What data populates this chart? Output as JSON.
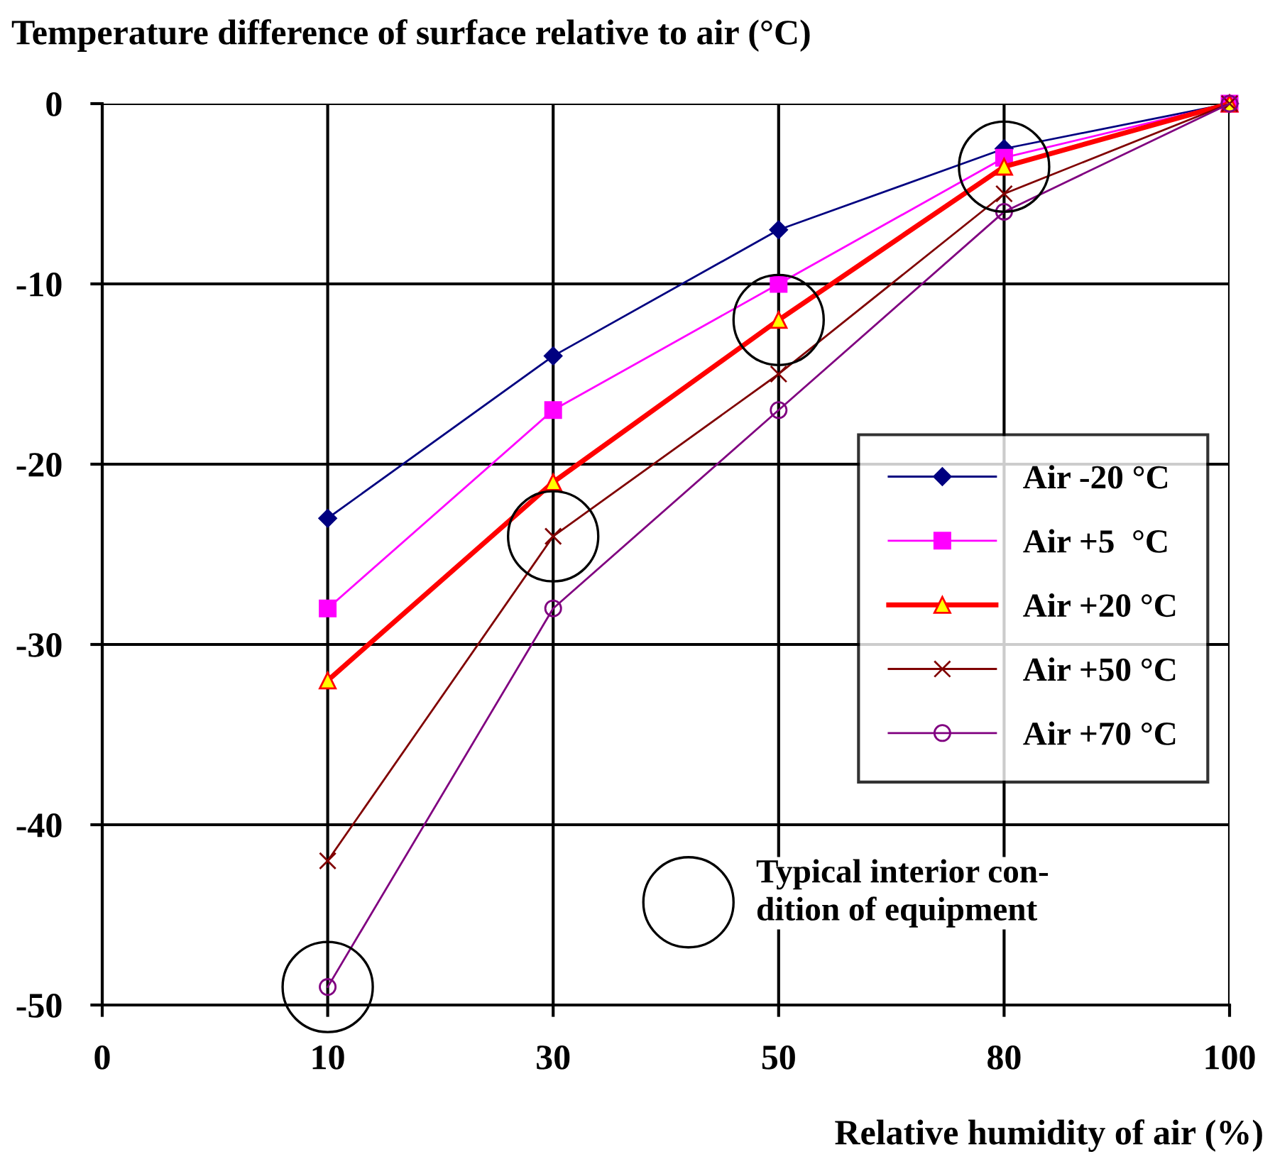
{
  "chart_data": {
    "type": "line",
    "ylabel": "Temperature difference of surface relative to air (°C)",
    "xlabel": "Relative humidity of air (%)",
    "categories": [
      "0",
      "10",
      "30",
      "50",
      "80",
      "100"
    ],
    "ylim": [
      -50,
      0
    ],
    "yticks": [
      -50,
      -40,
      -30,
      -20,
      -10,
      0
    ],
    "grid": true,
    "legend": "right",
    "series": [
      {
        "name": "Air -20 °C",
        "color": "#000080",
        "marker": "diamond",
        "values": [
          null,
          -23,
          -14,
          -7,
          -2.5,
          0
        ]
      },
      {
        "name": "Air +5  °C",
        "color": "#ff00ff",
        "marker": "square",
        "values": [
          null,
          -28,
          -17,
          -10,
          -3,
          0
        ]
      },
      {
        "name": "Air +20 °C",
        "color": "#ff0000",
        "marker": "triangle",
        "values": [
          null,
          -32,
          -21,
          -12,
          -3.5,
          0
        ]
      },
      {
        "name": "Air +50 °C",
        "color": "#800000",
        "marker": "cross",
        "values": [
          null,
          -42,
          -24,
          -15,
          -5,
          0
        ]
      },
      {
        "name": "Air +70 °C",
        "color": "#800080",
        "marker": "circle",
        "values": [
          null,
          -49,
          -28,
          -17,
          -6,
          0
        ]
      }
    ],
    "annotations": [
      "Typical interior con-\ndition of equipment"
    ]
  }
}
